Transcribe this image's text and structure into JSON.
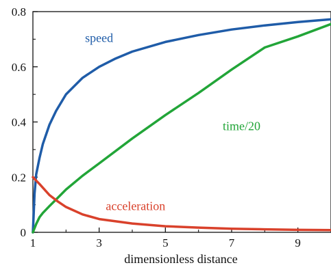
{
  "chart_data": {
    "type": "line",
    "title": "",
    "xlabel": "dimensionless distance",
    "ylabel": "",
    "xlim": [
      1,
      10
    ],
    "ylim": [
      0,
      0.8
    ],
    "xticks": [
      1,
      3,
      5,
      7,
      9
    ],
    "yticks": [
      0,
      0.2,
      0.4,
      0.6,
      0.8
    ],
    "ytick_labels": [
      "0",
      "0.2",
      "0.4",
      "0.6",
      "0.8"
    ],
    "grid": false,
    "series": [
      {
        "name": "speed",
        "color": "#1f5ca8",
        "label_anchor": [
          3.0,
          0.69
        ],
        "x": [
          1,
          1.05,
          1.1,
          1.2,
          1.3,
          1.5,
          1.7,
          2,
          2.5,
          3,
          3.5,
          4,
          5,
          6,
          7,
          8,
          9,
          10
        ],
        "y": [
          0,
          0.14,
          0.21,
          0.27,
          0.32,
          0.39,
          0.44,
          0.5,
          0.56,
          0.6,
          0.63,
          0.655,
          0.69,
          0.715,
          0.735,
          0.75,
          0.762,
          0.772
        ]
      },
      {
        "name": "time/20",
        "color": "#22a538",
        "label_anchor": [
          7.3,
          0.37
        ],
        "x": [
          1,
          1.1,
          1.2,
          1.3,
          1.5,
          1.75,
          2,
          2.5,
          3,
          4,
          5,
          6,
          7,
          8,
          9,
          10
        ],
        "y": [
          0,
          0.03,
          0.055,
          0.07,
          0.095,
          0.125,
          0.155,
          0.205,
          0.25,
          0.34,
          0.425,
          0.505,
          0.59,
          0.67,
          0.71,
          0.755
        ]
      },
      {
        "name": "acceleration",
        "color": "#d9412b",
        "label_anchor": [
          4.1,
          0.081
        ],
        "x": [
          1,
          1.2,
          1.5,
          1.75,
          2,
          2.5,
          3,
          4,
          5,
          6,
          7,
          8,
          9,
          10
        ],
        "y": [
          0.2,
          0.175,
          0.135,
          0.112,
          0.092,
          0.065,
          0.048,
          0.032,
          0.022,
          0.017,
          0.013,
          0.011,
          0.009,
          0.008
        ]
      }
    ]
  }
}
